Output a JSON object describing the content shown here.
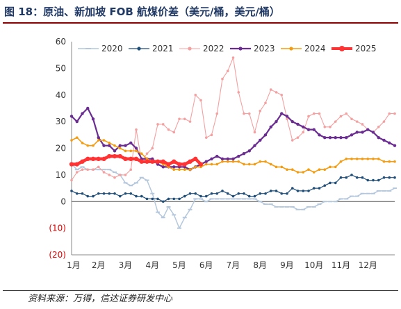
{
  "figure": {
    "title": "图 18：原油、新加坡 FOB 航煤价差（美元/桶，美元/桶）",
    "source": "资料来源：万得，信达证券研发中心"
  },
  "chart_data": {
    "type": "line",
    "title": "",
    "xlabel": "",
    "ylabel": "",
    "ylim": [
      -20,
      60
    ],
    "yticks": [
      -20,
      -10,
      0,
      10,
      20,
      30,
      40,
      50,
      60
    ],
    "ytick_labels": [
      "(20)",
      "(10)",
      "0",
      "10",
      "20",
      "30",
      "40",
      "50",
      "60"
    ],
    "xlim": [
      0,
      12
    ],
    "xtick_labels": [
      "1月",
      "2月",
      "3月",
      "4月",
      "5月",
      "6月",
      "7月",
      "8月",
      "9月",
      "10月",
      "11月",
      "12月"
    ],
    "grid": false,
    "legend_position": "top",
    "series": [
      {
        "name": "2020",
        "color": "#b4c7dc",
        "marker": "dash",
        "width": 1.5,
        "x": [
          0.0,
          0.2,
          0.4,
          0.6,
          0.8,
          1.0,
          1.2,
          1.4,
          1.6,
          1.8,
          2.0,
          2.2,
          2.4,
          2.6,
          2.8,
          3.0,
          3.2,
          3.4,
          3.6,
          3.8,
          4.0,
          4.2,
          4.4,
          4.6,
          4.8,
          5.0,
          5.2,
          5.4,
          5.6,
          5.8,
          6.0,
          6.2,
          6.4,
          6.6,
          6.8,
          7.0,
          7.2,
          7.4,
          7.6,
          7.8,
          8.0,
          8.2,
          8.4,
          8.6,
          8.8,
          9.0,
          9.2,
          9.4,
          9.6,
          9.8,
          10.0,
          10.2,
          10.4,
          10.6,
          10.8,
          11.0,
          11.2,
          11.4,
          11.6,
          11.8,
          12.0
        ],
        "values": [
          14,
          12,
          13,
          12,
          12,
          12,
          12,
          12,
          11,
          10,
          7,
          6,
          7,
          9,
          8,
          3,
          -4,
          -6,
          -2,
          -5,
          -10,
          -6,
          -3,
          1,
          1,
          0,
          1,
          1,
          1,
          1,
          1,
          1,
          1,
          1,
          1,
          0,
          -1,
          -1,
          -2,
          -2,
          -2,
          -2,
          -3,
          -3,
          -2,
          -2,
          -1,
          0,
          0,
          0,
          1,
          1,
          2,
          2,
          3,
          3,
          3,
          4,
          4,
          4,
          5
        ]
      },
      {
        "name": "2021",
        "color": "#1f4e79",
        "marker": "dot",
        "width": 1.2,
        "x": [
          0.0,
          0.2,
          0.4,
          0.6,
          0.8,
          1.0,
          1.2,
          1.4,
          1.6,
          1.8,
          2.0,
          2.2,
          2.4,
          2.6,
          2.8,
          3.0,
          3.2,
          3.4,
          3.6,
          3.8,
          4.0,
          4.2,
          4.4,
          4.6,
          4.8,
          5.0,
          5.2,
          5.4,
          5.6,
          5.8,
          6.0,
          6.2,
          6.4,
          6.6,
          6.8,
          7.0,
          7.2,
          7.4,
          7.6,
          7.8,
          8.0,
          8.2,
          8.4,
          8.6,
          8.8,
          9.0,
          9.2,
          9.4,
          9.6,
          9.8,
          10.0,
          10.2,
          10.4,
          10.6,
          10.8,
          11.0,
          11.2,
          11.4,
          11.6,
          11.8,
          12.0
        ],
        "values": [
          4,
          3,
          3,
          2,
          2,
          3,
          3,
          3,
          3,
          2,
          3,
          3,
          2,
          2,
          1,
          1,
          1,
          0,
          1,
          1,
          1,
          2,
          3,
          3,
          2,
          2,
          3,
          3,
          4,
          3,
          2,
          3,
          3,
          2,
          2,
          3,
          3,
          4,
          4,
          3,
          3,
          5,
          4,
          4,
          4,
          5,
          5,
          6,
          7,
          7,
          9,
          9,
          10,
          9,
          9,
          8,
          8,
          8,
          9,
          9,
          9
        ]
      },
      {
        "name": "2022",
        "color": "#f4a0a0",
        "marker": "dot",
        "width": 1.1,
        "x": [
          0.0,
          0.2,
          0.4,
          0.6,
          0.8,
          1.0,
          1.2,
          1.4,
          1.6,
          1.8,
          2.0,
          2.2,
          2.4,
          2.6,
          2.8,
          3.0,
          3.2,
          3.4,
          3.6,
          3.8,
          4.0,
          4.2,
          4.4,
          4.6,
          4.8,
          5.0,
          5.2,
          5.4,
          5.6,
          5.8,
          6.0,
          6.2,
          6.4,
          6.6,
          6.8,
          7.0,
          7.2,
          7.4,
          7.6,
          7.8,
          8.0,
          8.2,
          8.4,
          8.6,
          8.8,
          9.0,
          9.2,
          9.4,
          9.6,
          9.8,
          10.0,
          10.2,
          10.4,
          10.6,
          10.8,
          11.0,
          11.2,
          11.4,
          11.6,
          11.8,
          12.0
        ],
        "values": [
          8,
          11,
          12,
          12,
          12,
          13,
          11,
          10,
          9,
          10,
          10,
          12,
          27,
          15,
          18,
          20,
          29,
          29,
          27,
          26,
          31,
          31,
          30,
          40,
          38,
          24,
          25,
          33,
          46,
          49,
          54,
          41,
          33,
          33,
          26,
          34,
          37,
          42,
          41,
          40,
          31,
          23,
          24,
          26,
          32,
          33,
          33,
          28,
          28,
          30,
          32,
          33,
          31,
          30,
          29,
          27,
          26,
          28,
          30,
          33,
          33
        ]
      },
      {
        "name": "2023",
        "color": "#6a2c91",
        "marker": "dot",
        "width": 2.2,
        "x": [
          0.0,
          0.2,
          0.4,
          0.6,
          0.8,
          1.0,
          1.2,
          1.4,
          1.6,
          1.8,
          2.0,
          2.2,
          2.4,
          2.6,
          2.8,
          3.0,
          3.2,
          3.4,
          3.6,
          3.8,
          4.0,
          4.2,
          4.4,
          4.6,
          4.8,
          5.0,
          5.2,
          5.4,
          5.6,
          5.8,
          6.0,
          6.2,
          6.4,
          6.6,
          6.8,
          7.0,
          7.2,
          7.4,
          7.6,
          7.8,
          8.0,
          8.2,
          8.4,
          8.6,
          8.8,
          9.0,
          9.2,
          9.4,
          9.6,
          9.8,
          10.0,
          10.2,
          10.4,
          10.6,
          10.8,
          11.0,
          11.2,
          11.4,
          11.6,
          11.8,
          12.0
        ],
        "values": [
          32,
          30,
          33,
          35,
          31,
          24,
          21,
          21,
          19,
          21,
          21,
          22,
          20,
          16,
          16,
          16,
          14,
          13,
          13,
          13,
          13,
          13,
          12,
          13,
          14,
          15,
          16,
          17,
          16,
          16,
          16,
          17,
          18,
          19,
          21,
          23,
          25,
          28,
          30,
          33,
          32,
          30,
          29,
          28,
          27,
          27,
          25,
          24,
          24,
          24,
          24,
          24,
          25,
          26,
          26,
          27,
          26,
          24,
          23,
          22,
          21
        ]
      },
      {
        "name": "2024",
        "color": "#f39c12",
        "marker": "dot",
        "width": 1.6,
        "x": [
          0.0,
          0.2,
          0.4,
          0.6,
          0.8,
          1.0,
          1.2,
          1.4,
          1.6,
          1.8,
          2.0,
          2.2,
          2.4,
          2.6,
          2.8,
          3.0,
          3.2,
          3.4,
          3.6,
          3.8,
          4.0,
          4.2,
          4.4,
          4.6,
          4.8,
          5.0,
          5.2,
          5.4,
          5.6,
          5.8,
          6.0,
          6.2,
          6.4,
          6.6,
          6.8,
          7.0,
          7.2,
          7.4,
          7.6,
          7.8,
          8.0,
          8.2,
          8.4,
          8.6,
          8.8,
          9.0,
          9.2,
          9.4,
          9.6,
          9.8,
          10.0,
          10.2,
          10.4,
          10.6,
          10.8,
          11.0,
          11.2,
          11.4,
          11.6,
          11.8,
          12.0
        ],
        "values": [
          23,
          24,
          22,
          21,
          21,
          23,
          23,
          22,
          21,
          20,
          19,
          19,
          19,
          18,
          16,
          15,
          15,
          14,
          13,
          12,
          12,
          12,
          12,
          13,
          13,
          14,
          14,
          14,
          15,
          15,
          15,
          15,
          14,
          14,
          14,
          15,
          15,
          14,
          13,
          13,
          12,
          12,
          11,
          11,
          12,
          11,
          12,
          12,
          13,
          13,
          15,
          16,
          16,
          16,
          16,
          16,
          16,
          16,
          15,
          15,
          15
        ]
      },
      {
        "name": "2025",
        "color": "#ff3333",
        "marker": "dot",
        "width": 4.5,
        "x": [
          0.0,
          0.2,
          0.4,
          0.6,
          0.8,
          1.0,
          1.2,
          1.4,
          1.6,
          1.8,
          2.0,
          2.2,
          2.4,
          2.6,
          2.8,
          3.0,
          3.2,
          3.4,
          3.6,
          3.8,
          4.0,
          4.2,
          4.4,
          4.6,
          4.8
        ],
        "values": [
          14,
          14,
          15,
          16,
          16,
          16,
          16,
          17,
          17,
          17,
          16,
          16,
          16,
          15,
          15,
          15,
          15,
          15,
          14,
          15,
          14,
          14,
          15,
          16,
          14
        ]
      }
    ]
  }
}
